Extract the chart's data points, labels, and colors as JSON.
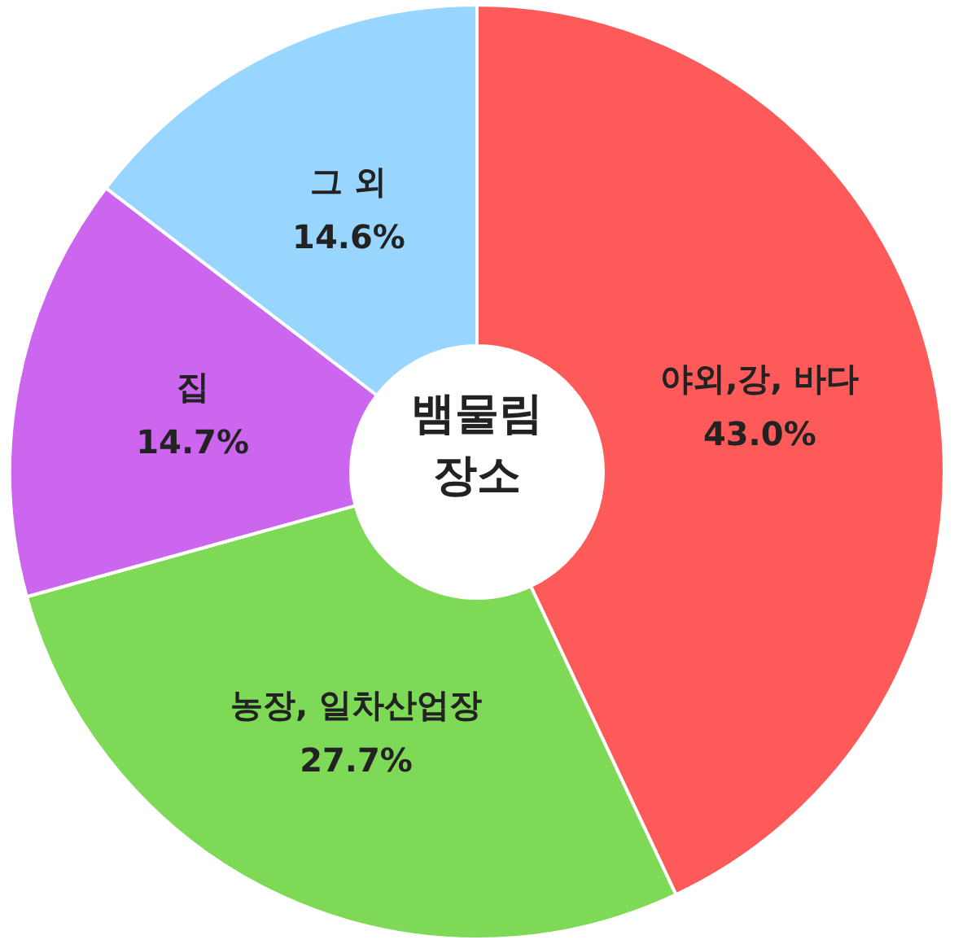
{
  "chart_data": {
    "type": "donut",
    "title": "뱀물림 장소",
    "categories": [
      "야외,강, 바다",
      "농장, 일차산업장",
      "집",
      "그 외"
    ],
    "values": [
      43.0,
      27.7,
      14.7,
      14.6
    ],
    "colors": [
      "#ff5a5a",
      "#7ed957",
      "#cc66ee",
      "#99d6ff"
    ],
    "value_labels": [
      "43.0%",
      "27.7%",
      "14.7%",
      "14.6%"
    ]
  }
}
